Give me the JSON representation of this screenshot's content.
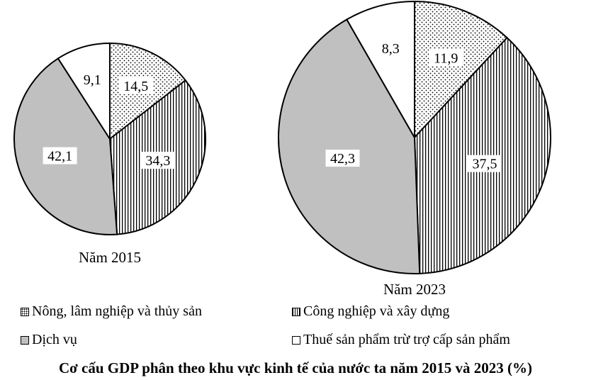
{
  "chart_data": [
    {
      "type": "pie",
      "title": "Năm 2015",
      "categories": [
        "Nông, lâm nghiệp và thủy sản",
        "Công nghiệp và xây dựng",
        "Dịch vụ",
        "Thuế sản phẩm trừ trợ cấp sản phẩm"
      ],
      "values": [
        14.5,
        34.3,
        42.1,
        9.1
      ],
      "labels": [
        "14,5",
        "34,3",
        "42,1",
        "9,1"
      ]
    },
    {
      "type": "pie",
      "title": "Năm 2023",
      "categories": [
        "Nông, lâm nghiệp và thủy sản",
        "Công nghiệp và xây dựng",
        "Dịch vụ",
        "Thuế sản phẩm trừ trợ cấp sản phẩm"
      ],
      "values": [
        11.9,
        37.5,
        42.3,
        8.3
      ],
      "labels": [
        "11,9",
        "37,5",
        "42,3",
        "8,3"
      ]
    }
  ],
  "legend": [
    {
      "label": "Nông, lâm nghiệp và thủy sản",
      "pattern": "dots"
    },
    {
      "label": "Công nghiệp và xây dựng",
      "pattern": "vertical-lines"
    },
    {
      "label": "Dịch vụ",
      "pattern": "gray",
      "color": "#c0c0c0"
    },
    {
      "label": "Thuế sản phẩm trừ trợ cấp sản phẩm",
      "pattern": "white",
      "color": "#ffffff"
    }
  ],
  "caption": "Cơ cấu GDP phân theo khu vực kinh tế của nước ta năm 2015 và 2023 (%)"
}
